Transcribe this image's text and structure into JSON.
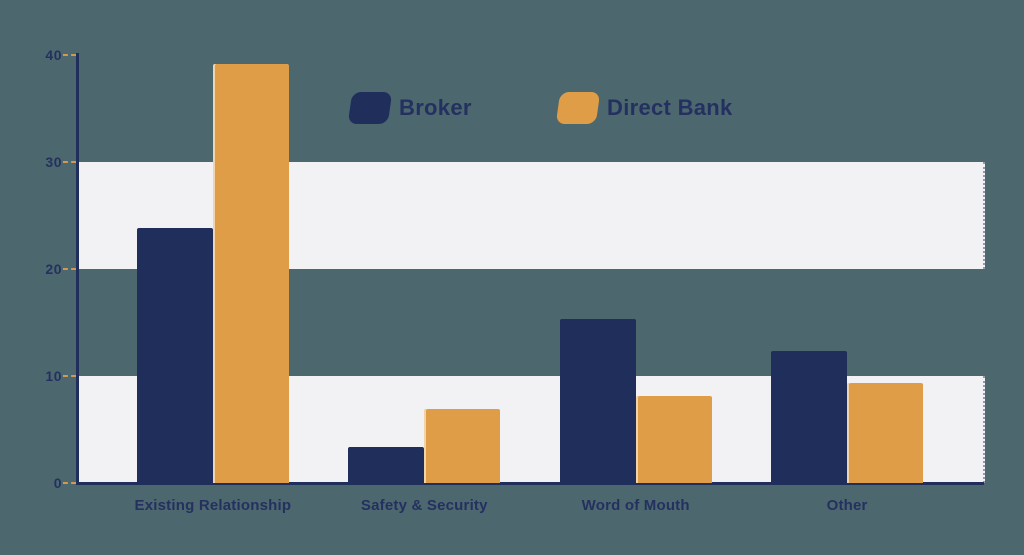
{
  "page": {
    "background_color": "#4d676e"
  },
  "colors": {
    "navy": "#202e5c",
    "text_navy": "#243160",
    "orange": "#e09d47",
    "band": "#f2f2f4",
    "tick_dash": "#d29a4f"
  },
  "legend": {
    "items": [
      {
        "label": "Broker",
        "color": "#202e5c"
      },
      {
        "label": "Direct Bank",
        "color": "#e09d47"
      }
    ]
  },
  "chart_data": {
    "type": "bar",
    "title": "",
    "xlabel": "",
    "ylabel": "",
    "categories": [
      "Existing Relationship",
      "Safety & Security",
      "Word of Mouth",
      "Other"
    ],
    "series": [
      {
        "name": "Broker",
        "color": "#202e5c",
        "values": [
          23.8,
          3.4,
          15.3,
          12.3
        ]
      },
      {
        "name": "Direct Bank",
        "color": "#e09d47",
        "values": [
          39.2,
          6.9,
          8.1,
          9.3
        ]
      }
    ],
    "ylim": [
      0,
      40
    ],
    "yticks": [
      0,
      10,
      20,
      30,
      40
    ],
    "grid": "alternating horizontal bands between 20-30 and 0-10",
    "band_ranges": [
      [
        20,
        30
      ],
      [
        0,
        10
      ]
    ],
    "legend_position": "top-center"
  }
}
